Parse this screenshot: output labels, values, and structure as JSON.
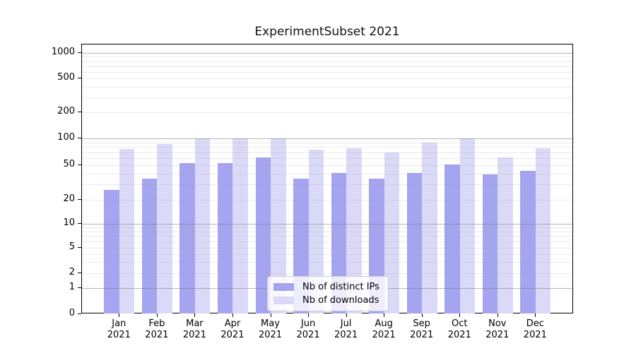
{
  "title": "ExperimentSubset 2021",
  "chart_data": {
    "type": "bar",
    "title": "ExperimentSubset 2021",
    "yscale": "symlog",
    "grid": true,
    "ylim": [
      0,
      1300
    ],
    "y_ticks": [
      0,
      1,
      2,
      5,
      10,
      20,
      50,
      100,
      200,
      500,
      1000
    ],
    "minor_gridlines": [
      3,
      4,
      6,
      7,
      8,
      9,
      30,
      40,
      60,
      70,
      80,
      90,
      300,
      400,
      600,
      700,
      800,
      900
    ],
    "categories": [
      "Jan",
      "Feb",
      "Mar",
      "Apr",
      "May",
      "Jun",
      "Jul",
      "Aug",
      "Sep",
      "Oct",
      "Nov",
      "Dec"
    ],
    "year_label": "2021",
    "series": [
      {
        "name": "Nb of distinct IPs",
        "color": "#a4a4f0",
        "values": [
          26,
          35,
          53,
          53,
          61,
          35,
          41,
          35,
          41,
          51,
          39,
          43
        ]
      },
      {
        "name": "Nb of downloads",
        "color": "#dadaf8",
        "values": [
          76,
          87,
          100,
          100,
          100,
          75,
          78,
          70,
          90,
          100,
          61,
          78
        ]
      }
    ],
    "legend_position": "lower center inside"
  }
}
